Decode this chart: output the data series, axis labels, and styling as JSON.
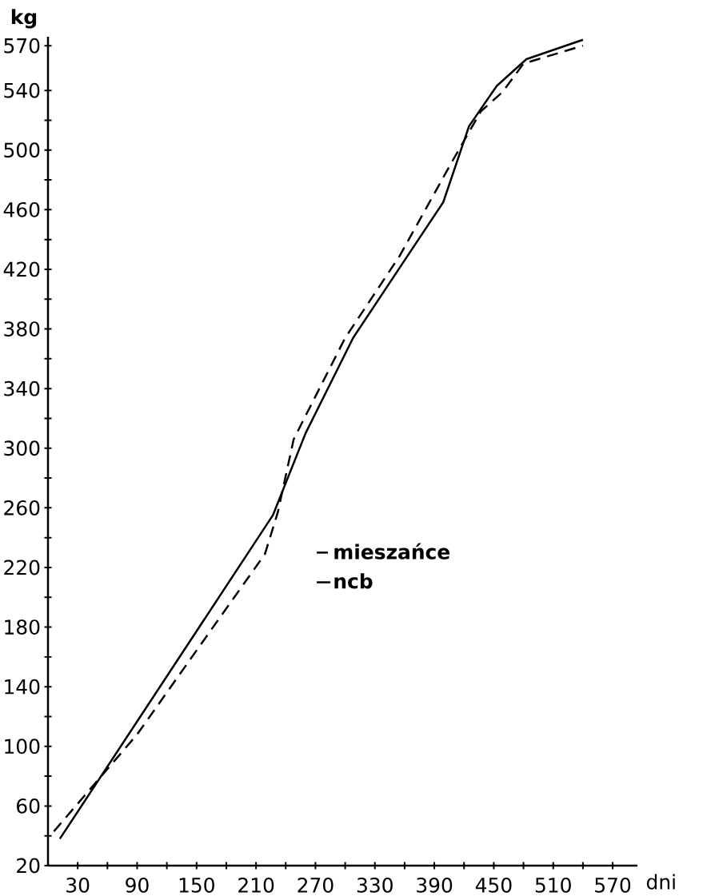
{
  "chart_data": {
    "type": "line",
    "xlabel": "dni",
    "ylabel": "kg",
    "xlim": [
      0,
      595
    ],
    "ylim": [
      20,
      576
    ],
    "xticks": [
      30,
      {
        "value": 60,
        "label": null
      },
      90,
      {
        "value": 120,
        "label": null
      },
      150,
      {
        "value": 180,
        "label": null
      },
      210,
      {
        "value": 240,
        "label": null
      },
      270,
      {
        "value": 300,
        "label": null
      },
      330,
      {
        "value": 360,
        "label": null
      },
      390,
      {
        "value": 420,
        "label": null
      },
      450,
      {
        "value": 480,
        "label": null
      },
      510,
      {
        "value": 540,
        "label": null
      },
      570
    ],
    "yticks": [
      20,
      {
        "value": 40,
        "label": null
      },
      60,
      {
        "value": 80,
        "label": null
      },
      100,
      {
        "value": 120,
        "label": null
      },
      140,
      {
        "value": 160,
        "label": null
      },
      180,
      {
        "value": 200,
        "label": null
      },
      220,
      {
        "value": 240,
        "label": null
      },
      260,
      {
        "value": 280,
        "label": null
      },
      300,
      {
        "value": 320,
        "label": null
      },
      340,
      {
        "value": 360,
        "label": null
      },
      380,
      {
        "value": 400,
        "label": null
      },
      420,
      {
        "value": 440,
        "label": null
      },
      460,
      {
        "value": 480,
        "label": null
      },
      500,
      {
        "value": 520,
        "label": null
      },
      540,
      570
    ],
    "legend": "right",
    "marker": "none",
    "series": [
      {
        "name": "mieszańce",
        "color": "#000000",
        "line_style": "dashed",
        "x": [
          6,
          90,
          156,
          219,
          232,
          248,
          300,
          355,
          406,
          437,
          459,
          480,
          540
        ],
        "values": [
          43,
          108,
          170,
          229,
          257,
          306,
          374,
          429,
          490,
          526,
          539,
          558,
          570
        ]
      },
      {
        "name": "ncb",
        "color": "#000000",
        "line_style": "solid",
        "x": [
          12,
          227,
          260,
          308,
          399,
          425,
          453,
          483,
          540
        ],
        "values": [
          38,
          255,
          310,
          374,
          465,
          516,
          543,
          561,
          574
        ]
      }
    ]
  }
}
